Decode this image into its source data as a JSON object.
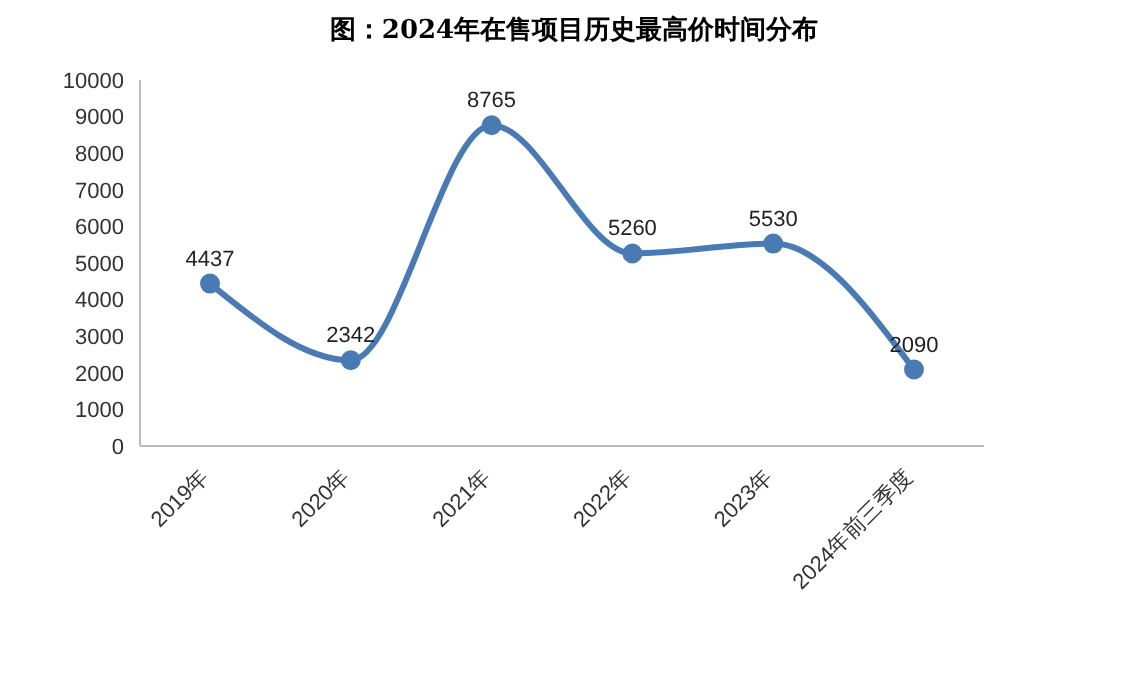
{
  "chart_data": {
    "type": "line",
    "title": "图：2024年在售项目历史最高价时间分布",
    "categories": [
      "2019年",
      "2020年",
      "2021年",
      "2022年",
      "2023年",
      "2024年前三季度"
    ],
    "series": [
      {
        "color": "#4a7ab4",
        "values": [
          4437,
          2342,
          8765,
          5260,
          5530,
          2090
        ]
      }
    ],
    "ylim": [
      0,
      10000
    ],
    "yticks": [
      0,
      1000,
      2000,
      3000,
      4000,
      5000,
      6000,
      7000,
      8000,
      9000,
      10000
    ],
    "grid": false,
    "legend": false,
    "marker": "circle",
    "line_style": "solid",
    "data_labels": true
  }
}
